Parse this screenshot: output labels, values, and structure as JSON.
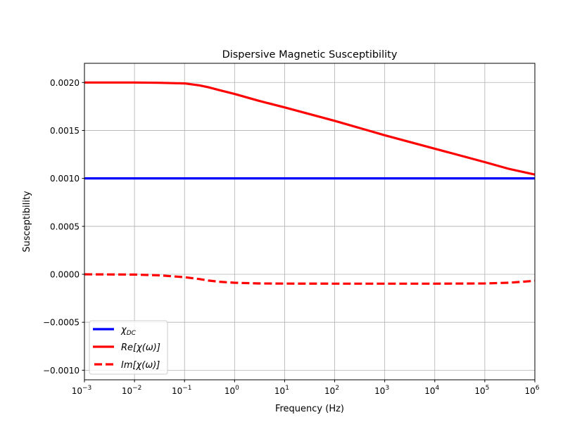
{
  "chart_data": {
    "type": "line",
    "title": "Dispersive Magnetic Susceptibility",
    "xlabel": "Frequency (Hz)",
    "ylabel": "Susceptibility",
    "xscale": "log",
    "xlim": [
      0.001,
      1000000
    ],
    "ylim": [
      -0.0011,
      0.0022
    ],
    "grid": true,
    "legend_position": "lower-left",
    "x_ticks": [
      {
        "value": 0.001,
        "base": "10",
        "exp": "−3"
      },
      {
        "value": 0.01,
        "base": "10",
        "exp": "−2"
      },
      {
        "value": 0.1,
        "base": "10",
        "exp": "−1"
      },
      {
        "value": 1,
        "base": "10",
        "exp": "0"
      },
      {
        "value": 10,
        "base": "10",
        "exp": "1"
      },
      {
        "value": 100,
        "base": "10",
        "exp": "2"
      },
      {
        "value": 1000,
        "base": "10",
        "exp": "3"
      },
      {
        "value": 10000,
        "base": "10",
        "exp": "4"
      },
      {
        "value": 100000,
        "base": "10",
        "exp": "5"
      },
      {
        "value": 1000000,
        "base": "10",
        "exp": "6"
      }
    ],
    "y_ticks": [
      {
        "value": 0.002,
        "label": "0.0020"
      },
      {
        "value": 0.0015,
        "label": "0.0015"
      },
      {
        "value": 0.001,
        "label": "0.0010"
      },
      {
        "value": 0.0005,
        "label": "0.0005"
      },
      {
        "value": 0,
        "label": "0.0000"
      },
      {
        "value": -0.0005,
        "label": "−0.0005"
      },
      {
        "value": -0.001,
        "label": "−0.0010"
      }
    ],
    "series": [
      {
        "name": "χDC",
        "name_main": "χ",
        "name_sub": "DC",
        "color": "#0000ff",
        "style": "solid",
        "x": [
          0.001,
          1000000
        ],
        "y": [
          0.001,
          0.001
        ]
      },
      {
        "name": "Re[χ(ω)]",
        "color": "#ff0000",
        "style": "solid",
        "x": [
          0.001,
          0.01,
          0.03,
          0.1,
          0.2,
          0.3,
          0.5,
          1,
          3,
          10,
          100,
          1000,
          10000,
          100000,
          300000,
          1000000
        ],
        "y": [
          0.002,
          0.002,
          0.001997,
          0.00199,
          0.00197,
          0.00195,
          0.00192,
          0.00188,
          0.00181,
          0.00174,
          0.0016,
          0.00145,
          0.00131,
          0.00117,
          0.0011,
          0.00104
        ]
      },
      {
        "name": "Im[χ(ω)]",
        "color": "#ff0000",
        "style": "dashed",
        "x": [
          0.001,
          0.01,
          0.03,
          0.1,
          0.2,
          0.3,
          0.5,
          1,
          3,
          10,
          100,
          1000,
          10000,
          100000,
          300000,
          1000000
        ],
        "y": [
          0,
          -3e-06,
          -1e-05,
          -3e-05,
          -5e-05,
          -6.5e-05,
          -7.8e-05,
          -8.8e-05,
          -9.5e-05,
          -9.7e-05,
          -9.75e-05,
          -9.75e-05,
          -9.75e-05,
          -9.5e-05,
          -8.8e-05,
          -6.8e-05
        ]
      }
    ]
  }
}
